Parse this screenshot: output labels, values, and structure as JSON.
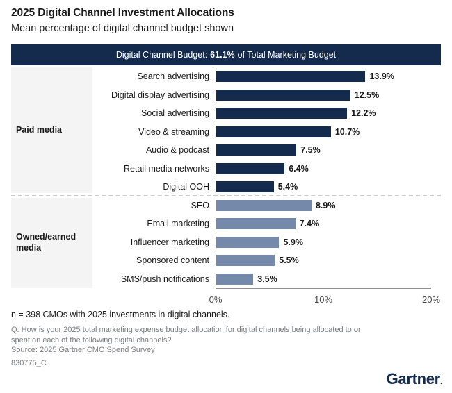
{
  "header": {
    "title": "2025 Digital Channel Investment Allocations",
    "subtitle": "Mean percentage of digital channel budget shown"
  },
  "banner": {
    "prefix": "Digital Channel Budget:",
    "value": "61.1%",
    "suffix": "of Total Marketing Budget"
  },
  "chart_data": {
    "type": "bar",
    "orientation": "horizontal",
    "title": "Digital Channel Budget: 61.1% of Total Marketing Budget",
    "xlabel": "",
    "ylabel": "",
    "xlim": [
      0,
      20
    ],
    "x_ticks": [
      "0%",
      "10%",
      "20%"
    ],
    "grid": false,
    "groups": [
      {
        "label": "Paid media",
        "color": "#142b4e",
        "items": [
          {
            "category": "Search advertising",
            "value": 13.9,
            "display": "13.9%"
          },
          {
            "category": "Digital display advertising",
            "value": 12.5,
            "display": "12.5%"
          },
          {
            "category": "Social advertising",
            "value": 12.2,
            "display": "12.2%"
          },
          {
            "category": "Video & streaming",
            "value": 10.7,
            "display": "10.7%"
          },
          {
            "category": "Audio & podcast",
            "value": 7.5,
            "display": "7.5%"
          },
          {
            "category": "Retail media networks",
            "value": 6.4,
            "display": "6.4%"
          },
          {
            "category": "Digital OOH",
            "value": 5.4,
            "display": "5.4%"
          }
        ]
      },
      {
        "label": "Owned/earned media",
        "color": "#7589ab",
        "items": [
          {
            "category": "SEO",
            "value": 8.9,
            "display": "8.9%"
          },
          {
            "category": "Email marketing",
            "value": 7.4,
            "display": "7.4%"
          },
          {
            "category": "Influencer marketing",
            "value": 5.9,
            "display": "5.9%"
          },
          {
            "category": "Sponsored content",
            "value": 5.5,
            "display": "5.5%"
          },
          {
            "category": "SMS/push notifications",
            "value": 3.5,
            "display": "3.5%"
          }
        ]
      }
    ]
  },
  "footer": {
    "n_note": "n = 398 CMOs with 2025 investments in digital channels.",
    "q_note": "Q: How is your 2025 total marketing expense budget allocation for digital channels being allocated to or spent on each of the following digital channels?",
    "source": "Source: 2025 Gartner CMO Spend Survey",
    "code": "830775_C",
    "logo": "Gartner"
  },
  "colors": {
    "navy": "#142b4e",
    "steel_blue": "#7589ab",
    "group_bg": "#f4f4f4",
    "axis": "#8f8f8f",
    "divider": "#cccccc",
    "muted_text": "#7b7d80"
  }
}
